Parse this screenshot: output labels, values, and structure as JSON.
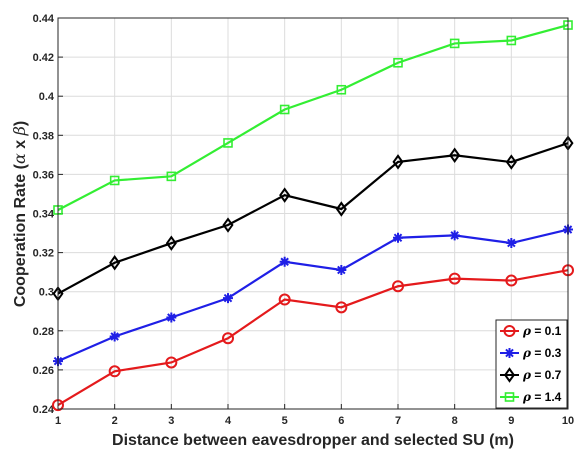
{
  "chart_data": {
    "type": "line",
    "x": [
      1,
      2,
      3,
      4,
      5,
      6,
      7,
      8,
      9,
      10
    ],
    "xlabel": "Distance between eavesdropper and selected SU (m)",
    "ylabel_parts": [
      "Cooperation Rate (",
      "α",
      " x ",
      "β",
      ")"
    ],
    "xlim": [
      1,
      10
    ],
    "ylim": [
      0.24,
      0.44
    ],
    "xticks": [
      1,
      2,
      3,
      4,
      5,
      6,
      7,
      8,
      9,
      10
    ],
    "yticks": [
      0.24,
      0.26,
      0.28,
      0.3,
      0.32,
      0.34,
      0.36,
      0.38,
      0.4,
      0.42,
      0.44
    ],
    "ytick_labels": [
      "0.24",
      "0.26",
      "0.28",
      "0.3",
      "0.32",
      "0.34",
      "0.36",
      "0.38",
      "0.4",
      "0.42",
      "0.44"
    ],
    "grid": true,
    "legend_position": "bottom-right",
    "series": [
      {
        "name": "ρ = 0.1",
        "legend_symbol": "ρ",
        "legend_rest": " = 0.1",
        "color": "#e41a1c",
        "marker": "circle",
        "values": [
          0.242,
          0.2593,
          0.2638,
          0.2762,
          0.296,
          0.292,
          0.3028,
          0.3067,
          0.3057,
          0.311
        ]
      },
      {
        "name": "ρ = 0.3",
        "legend_symbol": "ρ",
        "legend_rest": " = 0.3",
        "color": "#1f1fe6",
        "marker": "asterisk",
        "values": [
          0.2645,
          0.2771,
          0.2868,
          0.2967,
          0.3153,
          0.3111,
          0.3276,
          0.3288,
          0.3249,
          0.3318
        ]
      },
      {
        "name": "ρ = 0.7",
        "legend_symbol": "ρ",
        "legend_rest": " = 0.7",
        "color": "#000000",
        "marker": "diamond",
        "values": [
          0.299,
          0.3148,
          0.3248,
          0.3341,
          0.3494,
          0.3423,
          0.3664,
          0.3698,
          0.3663,
          0.376
        ]
      },
      {
        "name": "ρ = 1.4",
        "legend_symbol": "ρ",
        "legend_rest": " = 1.4",
        "color": "#33ee33",
        "marker": "square",
        "values": [
          0.3418,
          0.3569,
          0.359,
          0.3761,
          0.3932,
          0.4033,
          0.4171,
          0.427,
          0.4285,
          0.4364
        ]
      }
    ]
  }
}
